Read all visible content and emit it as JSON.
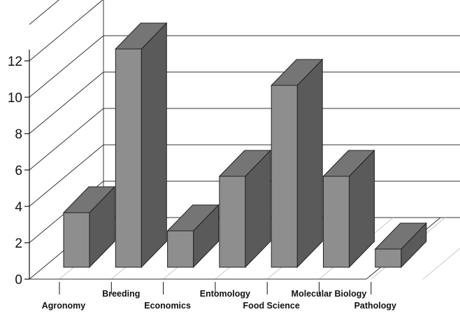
{
  "chart_data": {
    "type": "bar",
    "title": "",
    "xlabel": "",
    "ylabel": "",
    "categories": [
      "Agronomy",
      "Breeding",
      "Economics",
      "Entomology",
      "Food Science",
      "Molecular Biology",
      "Pathology"
    ],
    "values": [
      3,
      12,
      2,
      5,
      10,
      5,
      1
    ],
    "ylim": [
      0,
      12
    ],
    "yticks": [
      "0",
      "2",
      "4",
      "6",
      "8",
      "10",
      "12"
    ],
    "grid": true,
    "style": "3d",
    "colors": {
      "bar_front": "#8e8e8e",
      "bar_top": "#757575",
      "bar_side": "#5a5a5a",
      "outline": "#222222"
    }
  }
}
